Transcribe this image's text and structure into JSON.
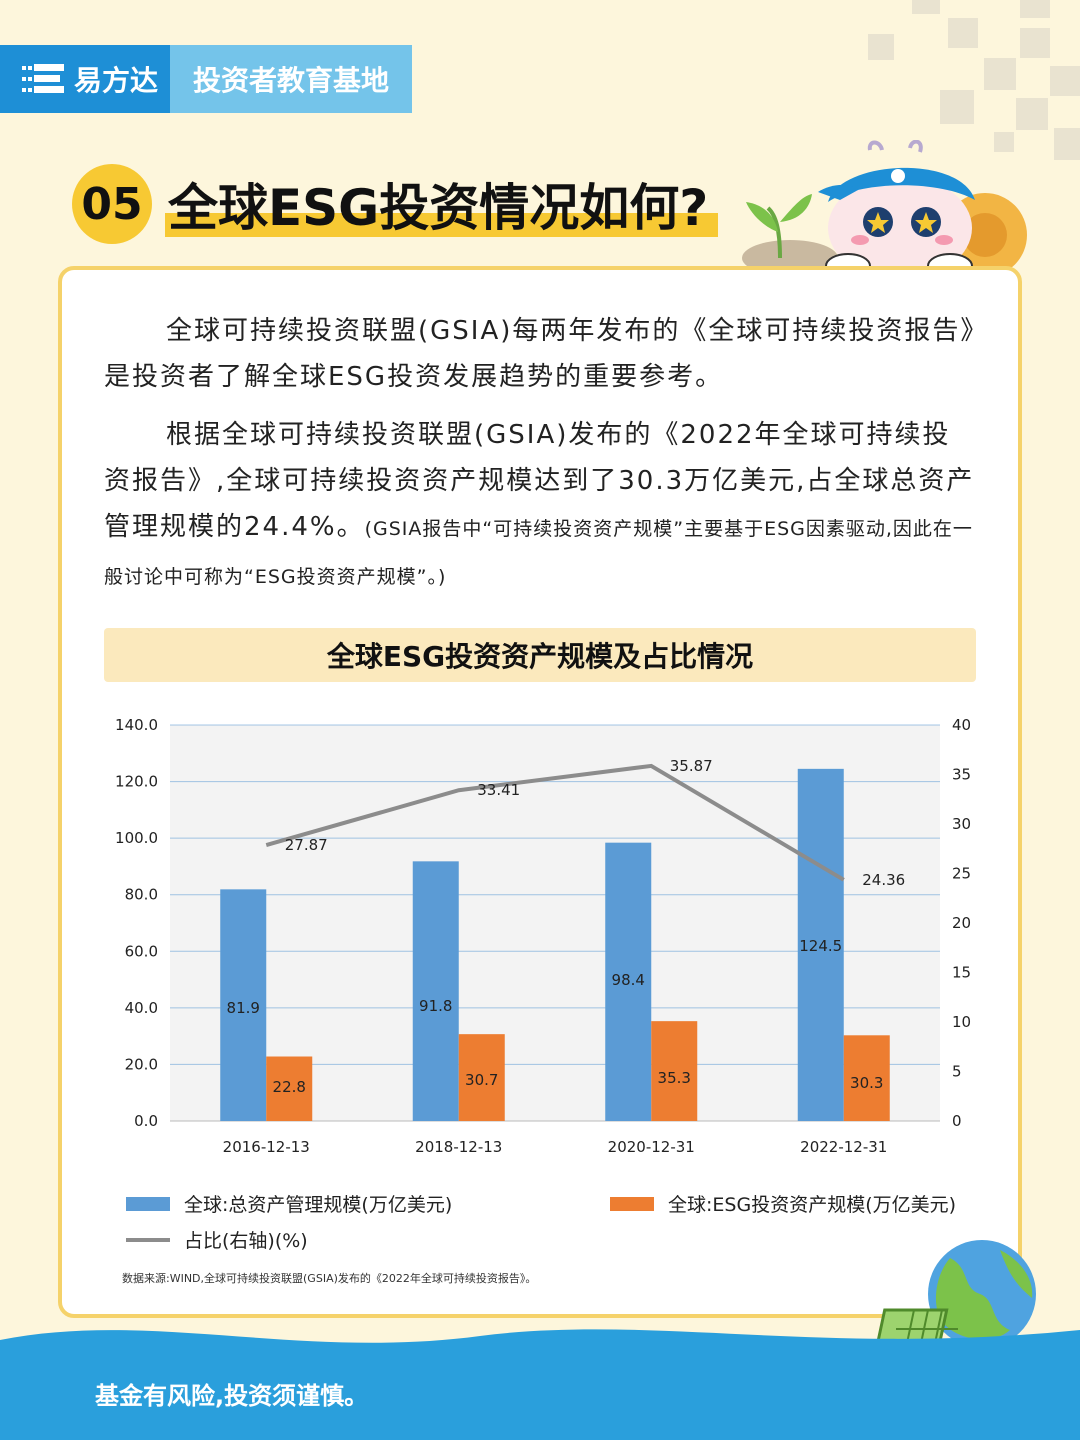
{
  "header": {
    "brand": "易方达",
    "section": "投资者教育基地"
  },
  "question": {
    "number": "05",
    "title": "全球ESG投资情况如何?"
  },
  "paragraphs": {
    "p1": "全球可持续投资联盟(GSIA)每两年发布的《全球可持续投资报告》是投资者了解全球ESG投资发展趋势的重要参考。",
    "p2_main": "根据全球可持续投资联盟(GSIA)发布的《2022年全球可持续投资报告》,全球可持续投资资产规模达到了30.3万亿美元,占全球总资产管理规模的24.4%。",
    "p2_note": "(GSIA报告中“可持续投资资产规模”主要基于ESG因素驱动,因此在一般讨论中可称为“ESG投资资产规模”。)"
  },
  "chart_data": {
    "type": "bar",
    "title": "全球ESG投资资产规模及占比情况",
    "categories": [
      "2016-12-13",
      "2018-12-13",
      "2020-12-31",
      "2022-12-31"
    ],
    "series": [
      {
        "name": "全球:总资产管理规模(万亿美元)",
        "type": "bar",
        "axis": "left",
        "color": "#5b9bd5",
        "values": [
          81.9,
          91.8,
          98.4,
          124.5
        ]
      },
      {
        "name": "全球:ESG投资资产规模(万亿美元)",
        "type": "bar",
        "axis": "left",
        "color": "#ed7d31",
        "values": [
          22.8,
          30.7,
          35.3,
          30.3
        ]
      },
      {
        "name": "占比(右轴)(%)",
        "type": "line",
        "axis": "right",
        "color": "#8c8c8c",
        "values": [
          27.87,
          33.41,
          35.87,
          24.36
        ]
      }
    ],
    "y_left": {
      "ylim": [
        0,
        140
      ],
      "ticks": [
        "0.0",
        "20.0",
        "40.0",
        "60.0",
        "80.0",
        "100.0",
        "120.0",
        "140.0"
      ]
    },
    "y_right": {
      "ylim": [
        0,
        40
      ],
      "ticks": [
        "0",
        "5",
        "10",
        "15",
        "20",
        "25",
        "30",
        "35",
        "40"
      ]
    },
    "grid": true,
    "legend_position": "bottom"
  },
  "legend": {
    "total": "全球:总资产管理规模(万亿美元)",
    "esg": "全球:ESG投资资产规模(万亿美元)",
    "ratio": "占比(右轴)(%)"
  },
  "source": "数据来源:WIND,全球可持续投资联盟(GSIA)发布的《2022年全球可持续投资报告》。",
  "footer": "基金有风险,投资须谨慎。",
  "colors": {
    "header_blue": "#1e8fd6",
    "header_light_blue": "#74c4ea",
    "accent_yellow": "#f7c933",
    "background": "#fdf6dc"
  }
}
